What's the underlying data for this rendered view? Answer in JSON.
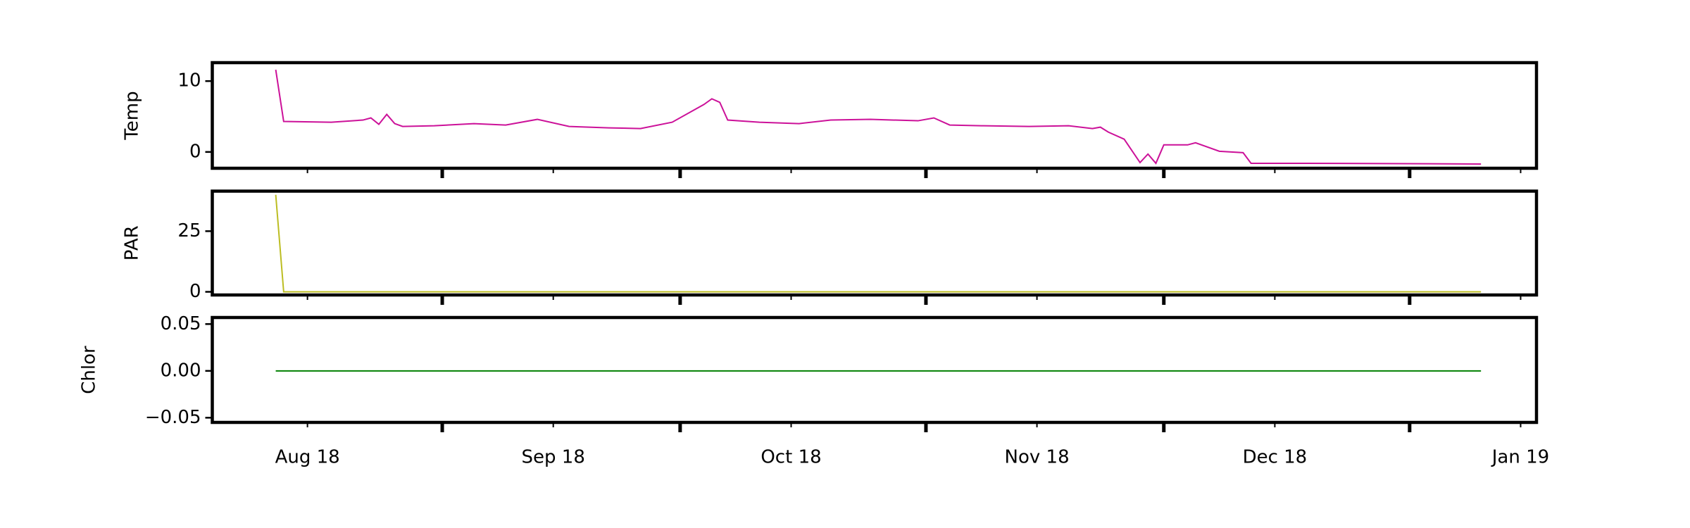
{
  "x_axis": {
    "xlim": [
      "2018-07-20",
      "2019-01-03"
    ],
    "xticks": [
      {
        "value": "2018-08-01",
        "label": "Aug 18"
      },
      {
        "value": "2018-09-01",
        "label": "Sep 18"
      },
      {
        "value": "2018-10-01",
        "label": "Oct 18"
      },
      {
        "value": "2018-11-01",
        "label": "Nov 18"
      },
      {
        "value": "2018-12-01",
        "label": "Dec 18"
      },
      {
        "value": "2019-01-01",
        "label": "Jan 19"
      }
    ],
    "xticks_major": [
      "2018-08-18",
      "2018-09-17",
      "2018-10-18",
      "2018-11-17",
      "2018-12-18"
    ]
  },
  "chart_data": [
    {
      "type": "line",
      "ylabel": "Temp",
      "color": "#cc1199",
      "ylim": [
        -2.3,
        12.6
      ],
      "yticks": [
        0,
        10
      ],
      "x": [
        "2018-07-28",
        "2018-07-29",
        "2018-08-04",
        "2018-08-08",
        "2018-08-09",
        "2018-08-10",
        "2018-08-11",
        "2018-08-12",
        "2018-08-13",
        "2018-08-17",
        "2018-08-22",
        "2018-08-26",
        "2018-08-30",
        "2018-09-03",
        "2018-09-08",
        "2018-09-12",
        "2018-09-16",
        "2018-09-20",
        "2018-09-21",
        "2018-09-22",
        "2018-09-23",
        "2018-09-27",
        "2018-10-02",
        "2018-10-06",
        "2018-10-11",
        "2018-10-17",
        "2018-10-19",
        "2018-10-21",
        "2018-10-25",
        "2018-10-31",
        "2018-11-05",
        "2018-11-08",
        "2018-11-09",
        "2018-11-10",
        "2018-11-12",
        "2018-11-14",
        "2018-11-15",
        "2018-11-16",
        "2018-11-17",
        "2018-11-20",
        "2018-11-21",
        "2018-11-24",
        "2018-11-27",
        "2018-11-28",
        "2018-12-05",
        "2018-12-27"
      ],
      "values": [
        11.6,
        4.3,
        4.2,
        4.5,
        4.8,
        3.9,
        5.3,
        4.0,
        3.6,
        3.7,
        4.0,
        3.8,
        4.6,
        3.6,
        3.4,
        3.3,
        4.2,
        6.7,
        7.5,
        7.0,
        4.5,
        4.2,
        4.0,
        4.5,
        4.6,
        4.4,
        4.8,
        3.8,
        3.7,
        3.6,
        3.7,
        3.3,
        3.5,
        2.8,
        1.8,
        -1.5,
        -0.3,
        -1.6,
        1.0,
        1.0,
        1.3,
        0.1,
        -0.1,
        -1.6,
        -1.6,
        -1.7
      ]
    },
    {
      "type": "line",
      "ylabel": "PAR",
      "color": "#bcbd22",
      "ylim": [
        -1.3,
        41.5
      ],
      "yticks": [
        0,
        25
      ],
      "x": [
        "2018-07-28",
        "2018-07-29",
        "2018-12-27"
      ],
      "values": [
        40,
        0,
        0
      ]
    },
    {
      "type": "line",
      "ylabel": "Chlor",
      "color": "#008000",
      "ylim": [
        -0.055,
        0.057
      ],
      "yticks": [
        {
          "value": -0.05,
          "label": "−0.05"
        },
        {
          "value": 0,
          "label": "0.00"
        },
        0.05
      ],
      "x": [
        "2018-07-28",
        "2018-12-27"
      ],
      "values": [
        0,
        0
      ]
    }
  ]
}
